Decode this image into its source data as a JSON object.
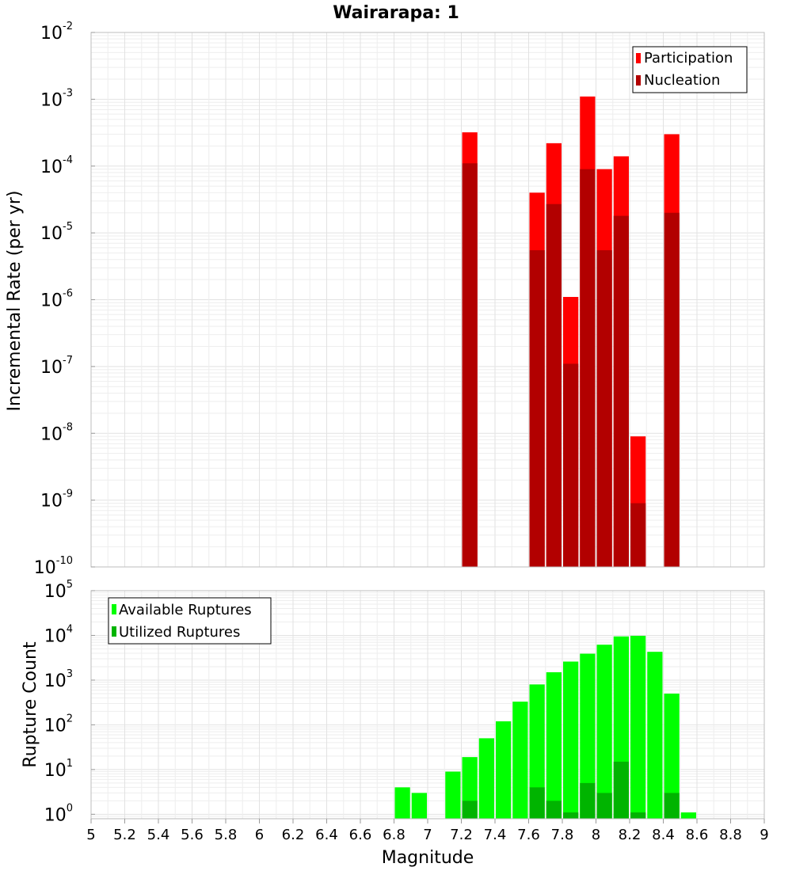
{
  "chart_data": [
    {
      "type": "bar",
      "title": "Wairarapa: 1",
      "ylabel": "Incremental Rate (per yr)",
      "xlabel": "",
      "xlim": [
        5,
        9
      ],
      "ylim_log10": [
        -10,
        -2
      ],
      "y_tick_exponents": [
        -10,
        -9,
        -8,
        -7,
        -6,
        -5,
        -4,
        -3,
        -2
      ],
      "bin_width": 0.1,
      "legend_position": "top-right",
      "series": [
        {
          "name": "Participation",
          "color": "#ff0000",
          "points": [
            [
              7.25,
              0.00032
            ],
            [
              7.65,
              4e-05
            ],
            [
              7.75,
              0.00022
            ],
            [
              7.85,
              1.1e-06
            ],
            [
              7.95,
              0.0011
            ],
            [
              8.05,
              9e-05
            ],
            [
              8.15,
              0.00014
            ],
            [
              8.25,
              9e-09
            ],
            [
              8.45,
              0.0003
            ]
          ]
        },
        {
          "name": "Nucleation",
          "color": "#b20000",
          "points": [
            [
              7.25,
              0.00011
            ],
            [
              7.65,
              5.5e-06
            ],
            [
              7.75,
              2.7e-05
            ],
            [
              7.85,
              1.1e-07
            ],
            [
              7.95,
              9e-05
            ],
            [
              8.05,
              5.5e-06
            ],
            [
              8.15,
              1.8e-05
            ],
            [
              8.25,
              9e-10
            ],
            [
              8.45,
              2e-05
            ]
          ]
        }
      ]
    },
    {
      "type": "bar",
      "title": "",
      "ylabel": "Rupture Count",
      "xlabel": "Magnitude",
      "xlim": [
        5,
        9
      ],
      "ylim_log10": [
        -0.1,
        5
      ],
      "y_tick_exponents": [
        0,
        1,
        2,
        3,
        4,
        5
      ],
      "x_tick_labels": [
        "5",
        "5.2",
        "5.4",
        "5.6",
        "5.8",
        "6",
        "6.2",
        "6.4",
        "6.6",
        "6.8",
        "7",
        "7.2",
        "7.4",
        "7.6",
        "7.8",
        "8",
        "8.2",
        "8.4",
        "8.6",
        "8.8",
        "9"
      ],
      "bin_width": 0.1,
      "legend_position": "top-left",
      "series": [
        {
          "name": "Available Ruptures",
          "color": "#00ff00",
          "points": [
            [
              6.85,
              4
            ],
            [
              6.95,
              3
            ],
            [
              7.15,
              9
            ],
            [
              7.25,
              19
            ],
            [
              7.35,
              50
            ],
            [
              7.45,
              120
            ],
            [
              7.55,
              330
            ],
            [
              7.65,
              800
            ],
            [
              7.75,
              1500
            ],
            [
              7.85,
              2600
            ],
            [
              7.95,
              3900
            ],
            [
              8.05,
              6200
            ],
            [
              8.15,
              9500
            ],
            [
              8.25,
              9800
            ],
            [
              8.35,
              4300
            ],
            [
              8.45,
              500
            ],
            [
              8.55,
              1.1
            ]
          ]
        },
        {
          "name": "Utilized Ruptures",
          "color": "#00b400",
          "points": [
            [
              7.25,
              2
            ],
            [
              7.65,
              4
            ],
            [
              7.75,
              2
            ],
            [
              7.85,
              1.1
            ],
            [
              7.95,
              5
            ],
            [
              8.05,
              3
            ],
            [
              8.15,
              15
            ],
            [
              8.25,
              1.1
            ],
            [
              8.45,
              3
            ]
          ]
        }
      ]
    }
  ]
}
